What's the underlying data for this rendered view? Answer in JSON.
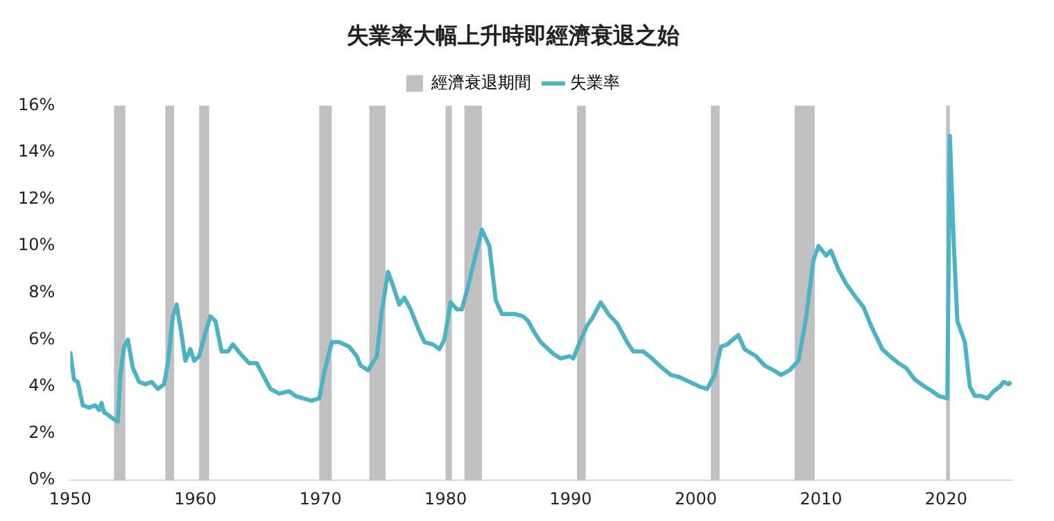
{
  "chart_data": {
    "type": "line",
    "title": "失業率大幅上升時即經濟衰退之始",
    "x": [
      1950,
      1950.3,
      1950.6,
      1951,
      1951.5,
      1952,
      1952.3,
      1952.5,
      1952.7,
      1953,
      1953.5,
      1953.8,
      1954,
      1954.3,
      1954.6,
      1955,
      1955.5,
      1956,
      1956.5,
      1957,
      1957.5,
      1957.8,
      1958.2,
      1958.5,
      1958.9,
      1959.2,
      1959.6,
      1959.9,
      1960.3,
      1960.8,
      1961.2,
      1961.6,
      1962.1,
      1962.6,
      1963,
      1963.6,
      1964.3,
      1964.9,
      1965.5,
      1966,
      1966.7,
      1967.5,
      1968,
      1968.6,
      1969.3,
      1969.9,
      1970.3,
      1970.9,
      1971.5,
      1972.3,
      1972.9,
      1973.2,
      1973.8,
      1974.5,
      1974.9,
      1975.4,
      1975.8,
      1976.3,
      1976.7,
      1977.2,
      1977.8,
      1978.3,
      1979,
      1979.5,
      1979.9,
      1980.4,
      1980.9,
      1981.3,
      1981.8,
      1982.3,
      1982.9,
      1983.5,
      1984,
      1984.5,
      1985.5,
      1986.2,
      1986.6,
      1987,
      1987.6,
      1988,
      1988.6,
      1989.2,
      1989.9,
      1990.2,
      1990.8,
      1991.3,
      1991.7,
      1992.4,
      1993,
      1993.7,
      1994.5,
      1995,
      1995.8,
      1996.5,
      1997.3,
      1998,
      1998.7,
      1999.5,
      2000.3,
      2000.9,
      2001.5,
      2002,
      2002.5,
      2003.4,
      2003.9,
      2004.8,
      2005.5,
      2006.2,
      2006.8,
      2007.5,
      2008.2,
      2008.8,
      2009.4,
      2009.8,
      2010.4,
      2010.8,
      2011.4,
      2012,
      2012.8,
      2013.4,
      2014,
      2014.9,
      2015.5,
      2016.2,
      2016.8,
      2017.5,
      2018.3,
      2018.9,
      2019.4,
      2020.1,
      2020.3,
      2020.6,
      2020.9,
      2021.5,
      2021.9,
      2022.3,
      2022.8,
      2023.3,
      2023.8,
      2024.3,
      2024.6,
      2025,
      2025.2
    ],
    "series": [
      {
        "name": "失業率",
        "color": "#4db3c3",
        "values": [
          5.5,
          4.3,
          4.2,
          3.2,
          3.1,
          3.2,
          3.0,
          3.3,
          2.9,
          2.8,
          2.6,
          2.5,
          4.5,
          5.7,
          6.0,
          4.8,
          4.2,
          4.1,
          4.2,
          3.9,
          4.1,
          5.0,
          7.0,
          7.5,
          6.2,
          5.1,
          5.6,
          5.1,
          5.3,
          6.3,
          7.0,
          6.8,
          5.5,
          5.5,
          5.8,
          5.4,
          5.0,
          5.0,
          4.4,
          3.9,
          3.7,
          3.8,
          3.6,
          3.5,
          3.4,
          3.5,
          4.6,
          5.9,
          5.9,
          5.7,
          5.3,
          4.9,
          4.7,
          5.3,
          7.2,
          8.9,
          8.3,
          7.5,
          7.8,
          7.3,
          6.5,
          5.9,
          5.8,
          5.6,
          6.0,
          7.6,
          7.3,
          7.3,
          8.3,
          9.4,
          10.7,
          10.0,
          7.7,
          7.1,
          7.1,
          7.0,
          6.8,
          6.4,
          5.9,
          5.7,
          5.4,
          5.2,
          5.3,
          5.2,
          6.0,
          6.6,
          6.9,
          7.6,
          7.1,
          6.7,
          5.9,
          5.5,
          5.5,
          5.2,
          4.8,
          4.5,
          4.4,
          4.2,
          4.0,
          3.9,
          4.5,
          5.7,
          5.8,
          6.2,
          5.6,
          5.3,
          4.9,
          4.7,
          4.5,
          4.7,
          5.1,
          6.9,
          9.4,
          10.0,
          9.6,
          9.8,
          9.0,
          8.4,
          7.8,
          7.4,
          6.6,
          5.6,
          5.3,
          5.0,
          4.8,
          4.3,
          4.0,
          3.8,
          3.6,
          3.5,
          14.7,
          10.3,
          6.8,
          5.9,
          4.0,
          3.6,
          3.6,
          3.5,
          3.8,
          4.0,
          4.2,
          4.1,
          4.2
        ]
      }
    ],
    "bands": [
      {
        "axis": "x",
        "from": 1953.5,
        "to": 1954.4,
        "label": "經濟衰退期間",
        "color": "#c0c0c0"
      },
      {
        "axis": "x",
        "from": 1957.6,
        "to": 1958.3,
        "color": "#c0c0c0"
      },
      {
        "axis": "x",
        "from": 1960.3,
        "to": 1961.1,
        "color": "#c0c0c0"
      },
      {
        "axis": "x",
        "from": 1969.9,
        "to": 1970.9,
        "color": "#c0c0c0"
      },
      {
        "axis": "x",
        "from": 1973.9,
        "to": 1975.2,
        "color": "#c0c0c0"
      },
      {
        "axis": "x",
        "from": 1980.0,
        "to": 1980.5,
        "color": "#c0c0c0"
      },
      {
        "axis": "x",
        "from": 1981.5,
        "to": 1982.9,
        "color": "#c0c0c0"
      },
      {
        "axis": "x",
        "from": 1990.5,
        "to": 1991.2,
        "color": "#c0c0c0"
      },
      {
        "axis": "x",
        "from": 2001.2,
        "to": 2001.9,
        "color": "#c0c0c0"
      },
      {
        "axis": "x",
        "from": 2007.9,
        "to": 2009.5,
        "color": "#c0c0c0"
      },
      {
        "axis": "x",
        "from": 2020.0,
        "to": 2020.3,
        "color": "#c0c0c0"
      }
    ],
    "xlim": [
      1950,
      2025.3
    ],
    "xticks": [
      1950,
      1960,
      1970,
      1980,
      1990,
      2000,
      2010,
      2020
    ],
    "ylim": [
      0,
      16
    ],
    "yticks": [
      {
        "value": 0,
        "label": "0%"
      },
      {
        "value": 2,
        "label": "2%"
      },
      {
        "value": 4,
        "label": "4%"
      },
      {
        "value": 6,
        "label": "6%"
      },
      {
        "value": 8,
        "label": "8%"
      },
      {
        "value": 10,
        "label": "10%"
      },
      {
        "value": 12,
        "label": "12%"
      },
      {
        "value": 14,
        "label": "14%"
      },
      {
        "value": 16,
        "label": "16%"
      }
    ],
    "grid": false,
    "legend": "top",
    "marker": "none",
    "line_style": "solid"
  }
}
